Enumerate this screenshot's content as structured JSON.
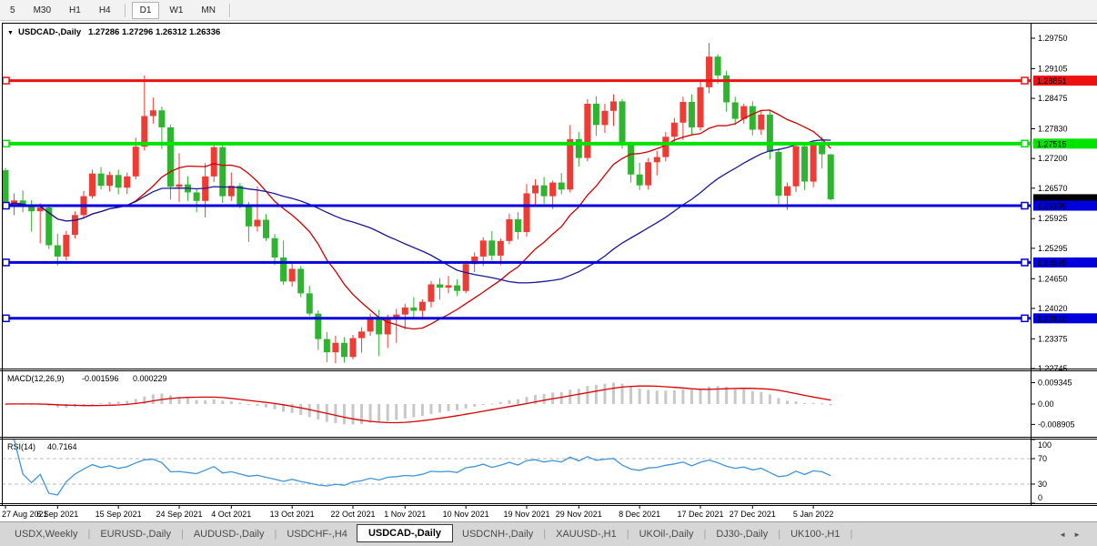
{
  "toolbar": {
    "timeframes": [
      {
        "label": "5",
        "active": false
      },
      {
        "label": "M30",
        "active": false
      },
      {
        "label": "H1",
        "active": false
      },
      {
        "label": "H4",
        "active": false
      },
      {
        "label": "D1",
        "active": true
      },
      {
        "label": "W1",
        "active": false
      },
      {
        "label": "MN",
        "active": false
      }
    ]
  },
  "chart": {
    "header": {
      "collapse_icon": "▼",
      "symbol": "USDCAD-,Daily",
      "ohlc": "1.27286 1.27296 1.26312 1.26336"
    },
    "macd_panel": {
      "title": "MACD(12,26,9)",
      "value_main": "-0.001596",
      "value_signal": "0.000229"
    },
    "rsi_panel": {
      "title": "RSI(14)",
      "value": "40.7164"
    }
  },
  "chart_data": {
    "type": "candlestick",
    "symbol": "USDCAD",
    "timeframe": "Daily",
    "ohlc_current": {
      "open": 1.27286,
      "high": 1.27296,
      "low": 1.26312,
      "close": 1.26336
    },
    "up_color": "#ee3b33",
    "down_color": "#2eb42e",
    "price_axis": {
      "ticks": [
        "1.29750",
        "1.29105",
        "1.28475",
        "1.27830",
        "1.27200",
        "1.26570",
        "1.25925",
        "1.25295",
        "1.24650",
        "1.24020",
        "1.23375",
        "1.22745"
      ],
      "ylim": [
        1.22745,
        1.30059
      ]
    },
    "x_axis": {
      "dates": [
        "27 Aug 2021",
        "6 Sep 2021",
        "15 Sep 2021",
        "24 Sep 2021",
        "4 Oct 2021",
        "13 Oct 2021",
        "22 Oct 2021",
        "1 Nov 2021",
        "10 Nov 2021",
        "19 Nov 2021",
        "29 Nov 2021",
        "8 Dec 2021",
        "17 Dec 2021",
        "27 Dec 2021",
        "5 Jan 2022"
      ],
      "days": [
        0,
        6,
        13,
        20,
        26,
        33,
        40,
        46,
        53,
        60,
        66,
        73,
        80,
        86,
        93
      ]
    },
    "hlines": [
      {
        "price": 1.28851,
        "label": "1.28851",
        "color": "#ee1111",
        "width": 3
      },
      {
        "price": 1.27515,
        "label": "1.27515",
        "color": "#00e400",
        "width": 4
      },
      {
        "price": 1.26199,
        "label": "1.26199",
        "color": "#0000dd",
        "width": 3
      },
      {
        "price": 1.24995,
        "label": "1.24995",
        "color": "#0000dd",
        "width": 3
      },
      {
        "price": 1.2381,
        "label": "1.23810",
        "color": "#0000dd",
        "width": 3
      }
    ],
    "current_price_label": {
      "text": "1.26336",
      "bg": "#000000"
    },
    "ma_lines": [
      {
        "period": 13,
        "color": "#cc0000"
      },
      {
        "period": 34,
        "color": "#1a1a99"
      }
    ],
    "macd": {
      "fast": 12,
      "slow": 26,
      "signal": 9,
      "main_current": -0.001596,
      "signal_current": 0.000229,
      "hist_color": "#c8c8c8",
      "signal_color": "#dd0000",
      "axis": [
        {
          "label": "0.009345",
          "value": 0.009345
        },
        {
          "label": "0.00",
          "value": 0
        },
        {
          "label": "-0.008905",
          "value": -0.008905
        }
      ]
    },
    "rsi": {
      "period": 14,
      "current": 40.7164,
      "levels": [
        70,
        30
      ],
      "color": "#3f95d8",
      "axis": [
        {
          "label": "100",
          "value": 100
        },
        {
          "label": "70",
          "value": 70
        },
        {
          "label": "30",
          "value": 30
        },
        {
          "label": "0",
          "value": 0
        }
      ]
    },
    "candles": [
      [
        1.2695,
        1.27,
        1.2612,
        1.262
      ],
      [
        1.262,
        1.2646,
        1.26,
        1.2631
      ],
      [
        1.2631,
        1.2652,
        1.2606,
        1.2618
      ],
      [
        1.2618,
        1.2632,
        1.2565,
        1.2608
      ],
      [
        1.2608,
        1.2625,
        1.254,
        1.2616
      ],
      [
        1.2616,
        1.2621,
        1.2528,
        1.2536
      ],
      [
        1.2536,
        1.256,
        1.2493,
        1.2512
      ],
      [
        1.2512,
        1.2566,
        1.2504,
        1.2558
      ],
      [
        1.2558,
        1.2608,
        1.255,
        1.26
      ],
      [
        1.26,
        1.2651,
        1.2594,
        1.264
      ],
      [
        1.264,
        1.2696,
        1.2635,
        1.2688
      ],
      [
        1.2688,
        1.2702,
        1.2654,
        1.2662
      ],
      [
        1.2662,
        1.2692,
        1.265,
        1.2685
      ],
      [
        1.2685,
        1.2696,
        1.2644,
        1.2658
      ],
      [
        1.2658,
        1.269,
        1.2645,
        1.2682
      ],
      [
        1.2682,
        1.2764,
        1.2676,
        1.2745
      ],
      [
        1.2745,
        1.2896,
        1.2737,
        1.281
      ],
      [
        1.281,
        1.2849,
        1.2794,
        1.2822
      ],
      [
        1.2822,
        1.283,
        1.274,
        1.2786
      ],
      [
        1.2786,
        1.2792,
        1.2633,
        1.266
      ],
      [
        1.266,
        1.2731,
        1.2628,
        1.2665
      ],
      [
        1.2665,
        1.2682,
        1.263,
        1.2648
      ],
      [
        1.2648,
        1.2656,
        1.2606,
        1.263
      ],
      [
        1.263,
        1.271,
        1.2595,
        1.2682
      ],
      [
        1.2682,
        1.2748,
        1.267,
        1.2744
      ],
      [
        1.2744,
        1.275,
        1.2626,
        1.264
      ],
      [
        1.264,
        1.269,
        1.263,
        1.2662
      ],
      [
        1.2662,
        1.2668,
        1.2614,
        1.262
      ],
      [
        1.262,
        1.2628,
        1.2543,
        1.2576
      ],
      [
        1.2576,
        1.2661,
        1.2565,
        1.259
      ],
      [
        1.259,
        1.2602,
        1.2545,
        1.2551
      ],
      [
        1.2551,
        1.256,
        1.2494,
        1.251
      ],
      [
        1.251,
        1.2546,
        1.2452,
        1.2459
      ],
      [
        1.2459,
        1.2502,
        1.2448,
        1.2486
      ],
      [
        1.2486,
        1.2492,
        1.2426,
        1.2434
      ],
      [
        1.2434,
        1.245,
        1.2386,
        1.2391
      ],
      [
        1.2391,
        1.2398,
        1.2314,
        1.2337
      ],
      [
        1.2337,
        1.2352,
        1.2288,
        1.2309
      ],
      [
        1.2309,
        1.2344,
        1.2286,
        1.2329
      ],
      [
        1.2329,
        1.2341,
        1.2287,
        1.2299
      ],
      [
        1.2299,
        1.2346,
        1.2294,
        1.2339
      ],
      [
        1.2339,
        1.2362,
        1.2308,
        1.2353
      ],
      [
        1.2353,
        1.2391,
        1.2344,
        1.2384
      ],
      [
        1.2384,
        1.2399,
        1.2301,
        1.2347
      ],
      [
        1.2347,
        1.2389,
        1.2318,
        1.2381
      ],
      [
        1.2381,
        1.2401,
        1.2329,
        1.2389
      ],
      [
        1.2389,
        1.2412,
        1.2358,
        1.2404
      ],
      [
        1.2404,
        1.2426,
        1.2383,
        1.2397
      ],
      [
        1.2397,
        1.2421,
        1.2378,
        1.2416
      ],
      [
        1.2416,
        1.246,
        1.2404,
        1.2453
      ],
      [
        1.2453,
        1.2466,
        1.2421,
        1.2446
      ],
      [
        1.2446,
        1.2471,
        1.2434,
        1.2451
      ],
      [
        1.2451,
        1.2464,
        1.2428,
        1.2439
      ],
      [
        1.2439,
        1.25,
        1.2434,
        1.2496
      ],
      [
        1.2496,
        1.2521,
        1.2479,
        1.2512
      ],
      [
        1.2512,
        1.2553,
        1.2492,
        1.2546
      ],
      [
        1.2546,
        1.2566,
        1.2504,
        1.2514
      ],
      [
        1.2514,
        1.255,
        1.2494,
        1.2545
      ],
      [
        1.2545,
        1.2603,
        1.2538,
        1.2591
      ],
      [
        1.2591,
        1.2606,
        1.2548,
        1.2564
      ],
      [
        1.2564,
        1.2666,
        1.2554,
        1.2646
      ],
      [
        1.2646,
        1.2676,
        1.2618,
        1.2663
      ],
      [
        1.2663,
        1.2681,
        1.2624,
        1.264
      ],
      [
        1.264,
        1.2673,
        1.2613,
        1.2669
      ],
      [
        1.2669,
        1.2689,
        1.2644,
        1.2654
      ],
      [
        1.2654,
        1.2791,
        1.2648,
        1.2761
      ],
      [
        1.2761,
        1.2776,
        1.2703,
        1.2721
      ],
      [
        1.2721,
        1.2846,
        1.2714,
        1.2836
      ],
      [
        1.2836,
        1.2852,
        1.2768,
        1.2791
      ],
      [
        1.2791,
        1.2836,
        1.2774,
        1.2821
      ],
      [
        1.2821,
        1.2856,
        1.2789,
        1.2841
      ],
      [
        1.2841,
        1.2846,
        1.2741,
        1.2751
      ],
      [
        1.2751,
        1.2756,
        1.2669,
        1.2686
      ],
      [
        1.2686,
        1.2711,
        1.2653,
        1.2663
      ],
      [
        1.2663,
        1.2721,
        1.2654,
        1.2712
      ],
      [
        1.2712,
        1.2736,
        1.2684,
        1.2723
      ],
      [
        1.2723,
        1.2776,
        1.2714,
        1.2766
      ],
      [
        1.2766,
        1.2806,
        1.2749,
        1.2796
      ],
      [
        1.2796,
        1.2851,
        1.2759,
        1.284
      ],
      [
        1.284,
        1.2856,
        1.2769,
        1.2786
      ],
      [
        1.2786,
        1.2886,
        1.2779,
        1.2871
      ],
      [
        1.2871,
        1.2965,
        1.2858,
        1.2936
      ],
      [
        1.2936,
        1.2941,
        1.2879,
        1.2896
      ],
      [
        1.2896,
        1.2906,
        1.2819,
        1.2839
      ],
      [
        1.2839,
        1.2851,
        1.2791,
        1.2804
      ],
      [
        1.2804,
        1.2836,
        1.2794,
        1.2831
      ],
      [
        1.2831,
        1.2841,
        1.2769,
        1.2781
      ],
      [
        1.2781,
        1.2821,
        1.277,
        1.2813
      ],
      [
        1.2813,
        1.2821,
        1.2718,
        1.2734
      ],
      [
        1.2734,
        1.2741,
        1.2624,
        1.2641
      ],
      [
        1.2641,
        1.2669,
        1.2611,
        1.2661
      ],
      [
        1.2661,
        1.2751,
        1.2649,
        1.2746
      ],
      [
        1.2746,
        1.2751,
        1.2653,
        1.2671
      ],
      [
        1.2671,
        1.2756,
        1.2659,
        1.2751
      ],
      [
        1.2751,
        1.2766,
        1.2699,
        1.2729
      ],
      [
        1.27286,
        1.27296,
        1.26312,
        1.26336
      ]
    ]
  },
  "tabbar": {
    "tabs": [
      {
        "label": "USDX,Weekly",
        "active": false
      },
      {
        "label": "EURUSD-,Daily",
        "active": false
      },
      {
        "label": "AUDUSD-,Daily",
        "active": false
      },
      {
        "label": "USDCHF-,H4",
        "active": false
      },
      {
        "label": "USDCAD-,Daily",
        "active": true
      },
      {
        "label": "USDCNH-,Daily",
        "active": false
      },
      {
        "label": "XAUUSD-,H1",
        "active": false
      },
      {
        "label": "UKOil-,Daily",
        "active": false
      },
      {
        "label": "DJ30-,Daily",
        "active": false
      },
      {
        "label": "UK100-,H1",
        "active": false
      }
    ],
    "scroll_left": "◄",
    "scroll_right": "►"
  }
}
